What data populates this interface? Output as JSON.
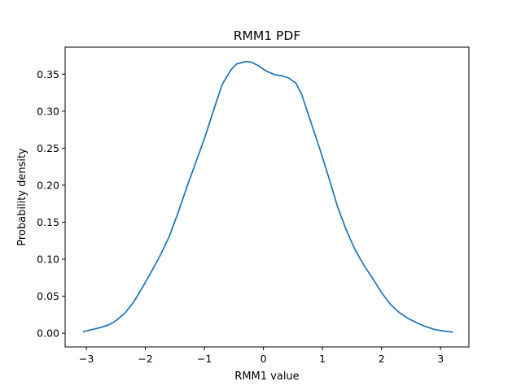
{
  "chart_data": {
    "type": "line",
    "title": "RMM1 PDF",
    "xlabel": "RMM1 value",
    "ylabel": "Probability density",
    "xlim": [
      -3.36,
      3.48
    ],
    "ylim": [
      -0.0185,
      0.3865
    ],
    "xticks": [
      -3,
      -2,
      -1,
      0,
      1,
      2,
      3
    ],
    "xtick_labels": [
      "−3",
      "−2",
      "−1",
      "0",
      "1",
      "2",
      "3"
    ],
    "yticks": [
      0.0,
      0.05,
      0.1,
      0.15,
      0.2,
      0.25,
      0.3,
      0.35
    ],
    "ytick_labels": [
      "0.00",
      "0.05",
      "0.10",
      "0.15",
      "0.20",
      "0.25",
      "0.30",
      "0.35"
    ],
    "grid": false,
    "legend": "none",
    "series": [
      {
        "color": "#1f77b4",
        "x": [
          -3.05,
          -2.9,
          -2.75,
          -2.6,
          -2.5,
          -2.35,
          -2.2,
          -2.05,
          -1.9,
          -1.75,
          -1.6,
          -1.45,
          -1.3,
          -1.15,
          -1.0,
          -0.85,
          -0.7,
          -0.55,
          -0.45,
          -0.3,
          -0.2,
          -0.1,
          0.05,
          0.2,
          0.3,
          0.42,
          0.55,
          0.65,
          0.8,
          0.95,
          1.1,
          1.25,
          1.4,
          1.55,
          1.7,
          1.85,
          2.0,
          2.15,
          2.3,
          2.45,
          2.6,
          2.75,
          2.9,
          3.05,
          3.2
        ],
        "y": [
          0.002,
          0.005,
          0.008,
          0.012,
          0.017,
          0.027,
          0.042,
          0.062,
          0.083,
          0.105,
          0.13,
          0.162,
          0.197,
          0.23,
          0.263,
          0.3,
          0.336,
          0.356,
          0.364,
          0.367,
          0.366,
          0.362,
          0.354,
          0.349,
          0.348,
          0.345,
          0.338,
          0.322,
          0.286,
          0.25,
          0.212,
          0.172,
          0.14,
          0.113,
          0.092,
          0.074,
          0.055,
          0.039,
          0.028,
          0.02,
          0.014,
          0.009,
          0.005,
          0.003,
          0.0015
        ]
      }
    ]
  }
}
